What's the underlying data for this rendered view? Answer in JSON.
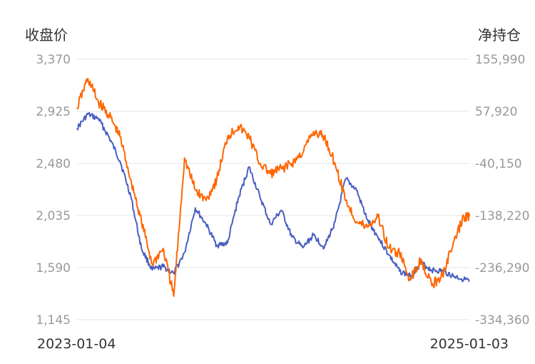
{
  "chart_data": {
    "type": "line",
    "y_left_label": "收盘价",
    "y_right_label": "净持仓",
    "y_left_ticks": [
      "3,370",
      "2,925",
      "2,480",
      "2,035",
      "1,590",
      "1,145"
    ],
    "y_right_ticks": [
      "155,990",
      "57,920",
      "-40,150",
      "-138,220",
      "-236,290",
      "-334,360"
    ],
    "y_left_range": [
      1145,
      3370
    ],
    "y_right_range": [
      -334360,
      155990
    ],
    "x_start_label": "2023-01-04",
    "x_end_label": "2025-01-03",
    "x_range": [
      "2023-01-04",
      "2025-01-03"
    ],
    "grid": true,
    "series": [
      {
        "axis": "left",
        "color": "#4a5fc1",
        "x": [
          "2023-01-04",
          "2023-01-24",
          "2023-02-13",
          "2023-03-05",
          "2023-03-25",
          "2023-04-14",
          "2023-05-04",
          "2023-05-24",
          "2023-06-13",
          "2023-07-03",
          "2023-07-23",
          "2023-08-12",
          "2023-09-01",
          "2023-09-21",
          "2023-10-11",
          "2023-10-31",
          "2023-11-20",
          "2023-12-10",
          "2023-12-30",
          "2024-01-19",
          "2024-02-08",
          "2024-02-28",
          "2024-03-19",
          "2024-04-08",
          "2024-04-28",
          "2024-05-18",
          "2024-06-07",
          "2024-06-27",
          "2024-07-17",
          "2024-08-06",
          "2024-08-26",
          "2024-09-15",
          "2024-10-05",
          "2024-10-25",
          "2024-11-14",
          "2024-12-04",
          "2024-12-24",
          "2025-01-03"
        ],
        "values": [
          2780,
          2900,
          2860,
          2700,
          2500,
          2200,
          1750,
          1570,
          1600,
          1540,
          1720,
          2100,
          1960,
          1780,
          1800,
          2180,
          2450,
          2200,
          1960,
          2080,
          1850,
          1760,
          1870,
          1760,
          1980,
          2350,
          2250,
          2000,
          1850,
          1700,
          1560,
          1520,
          1630,
          1570,
          1560,
          1520,
          1490,
          1470
        ]
      },
      {
        "axis": "right",
        "color": "#ff6600",
        "x": [
          "2023-01-04",
          "2023-01-24",
          "2023-02-13",
          "2023-03-05",
          "2023-03-25",
          "2023-04-14",
          "2023-05-04",
          "2023-05-24",
          "2023-06-13",
          "2023-07-03",
          "2023-07-23",
          "2023-08-12",
          "2023-09-01",
          "2023-09-21",
          "2023-10-11",
          "2023-10-31",
          "2023-11-20",
          "2023-12-10",
          "2023-12-30",
          "2024-01-19",
          "2024-02-08",
          "2024-02-28",
          "2024-03-19",
          "2024-04-08",
          "2024-04-28",
          "2024-05-18",
          "2024-06-07",
          "2024-06-27",
          "2024-07-17",
          "2024-08-06",
          "2024-08-26",
          "2024-09-15",
          "2024-10-05",
          "2024-10-25",
          "2024-11-14",
          "2024-12-04",
          "2024-12-24",
          "2025-01-03"
        ],
        "values": [
          65000,
          120000,
          75000,
          50000,
          10000,
          -70000,
          -150000,
          -230000,
          -200000,
          -290000,
          -30000,
          -90000,
          -110000,
          -70000,
          10000,
          30000,
          10000,
          -40000,
          -60000,
          -50000,
          -40000,
          -20000,
          20000,
          10000,
          -40000,
          -110000,
          -150000,
          -160000,
          -140000,
          -200000,
          -210000,
          -260000,
          -220000,
          -270000,
          -250000,
          -190000,
          -140000,
          -140000
        ]
      }
    ]
  }
}
